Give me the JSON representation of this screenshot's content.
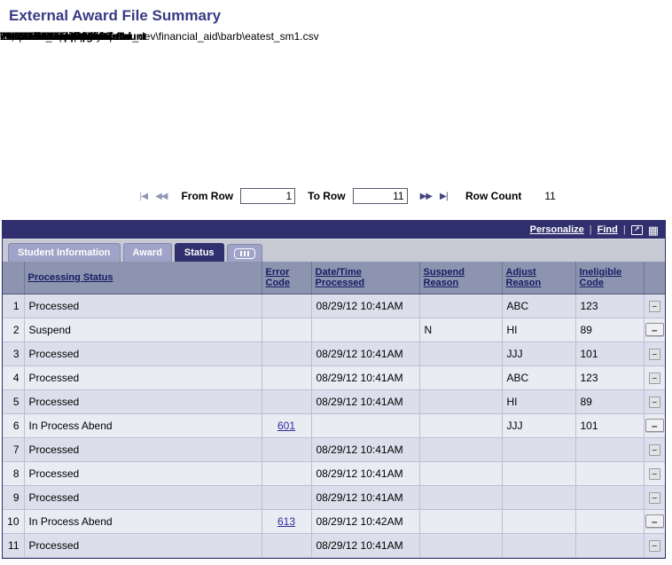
{
  "page": {
    "title": "External Award File Summary"
  },
  "header": {
    "institution_label": "Institution",
    "institution_value": "PSUNV",
    "institution_desc": "PeopleSoft University",
    "aid_year_label": "Aid Year",
    "aid_year_value": "2006-2007",
    "transaction_nbr_label": "Transaction Nbr",
    "transaction_nbr_value": "67",
    "date_label": "Date",
    "date_value": "08/29/2012",
    "process_instance_label": "Process Instance",
    "process_instance_value": "2434",
    "status_label": "Status",
    "status_value": "Processed",
    "file_mapping_id_label": "File Mapping ID",
    "file_mapping_id_value": "EXT FILE_EA DATA",
    "operator_id_label": "Operator Id",
    "operator_id_value": "PS",
    "file_name_label": "File Name",
    "file_name_value": "\\\\rtdc1006nap\\apps\\heqa\\he_dev\\financial_aid\\barb\\eatest_sm1.csv",
    "student_count_label": "Student Count",
    "student_count_value": "11",
    "award_total_label": "Award Total",
    "award_total_value": "11,055.00",
    "actual_count_label": "Actual Count",
    "actual_count_value": "11",
    "actual_total_label": "Actual Total",
    "actual_total_value": "11,055.00"
  },
  "nav": {
    "from_row_label": "From Row",
    "from_row_value": "1",
    "to_row_label": "To Row",
    "to_row_value": "11",
    "row_count_label": "Row Count",
    "row_count_value": "11"
  },
  "icons": {
    "first_rows": "|◀",
    "prev_rows": "◀◀",
    "next_rows": "▶▶",
    "last_rows": "▶|",
    "popout": "↗",
    "grid": "▦"
  },
  "grid": {
    "personalize_label": "Personalize",
    "find_label": "Find",
    "tabs": [
      {
        "label": "Student Information",
        "active": false
      },
      {
        "label": "Award",
        "active": false
      },
      {
        "label": "Status",
        "active": true
      }
    ],
    "columns": {
      "processing_status": "Processing Status",
      "error_code": "Error\nCode",
      "datetime_processed": "Date/Time\nProcessed",
      "suspend_reason": "Suspend\nReason",
      "adjust_reason": "Adjust\nReason",
      "ineligible_code": "Ineligible\nCode"
    },
    "rows": [
      {
        "num": "1",
        "status": "Processed",
        "error": "",
        "datetime": "08/29/12 10:41AM",
        "suspend": "",
        "adjust": "ABC",
        "ineligible": "123",
        "del": "small"
      },
      {
        "num": "2",
        "status": "Suspend",
        "error": "",
        "datetime": "",
        "suspend": "N",
        "adjust": "HI",
        "ineligible": "89",
        "del": "large"
      },
      {
        "num": "3",
        "status": "Processed",
        "error": "",
        "datetime": "08/29/12 10:41AM",
        "suspend": "",
        "adjust": "JJJ",
        "ineligible": "101",
        "del": "small"
      },
      {
        "num": "4",
        "status": "Processed",
        "error": "",
        "datetime": "08/29/12 10:41AM",
        "suspend": "",
        "adjust": "ABC",
        "ineligible": "123",
        "del": "small"
      },
      {
        "num": "5",
        "status": "Processed",
        "error": "",
        "datetime": "08/29/12 10:41AM",
        "suspend": "",
        "adjust": "HI",
        "ineligible": "89",
        "del": "small"
      },
      {
        "num": "6",
        "status": "In Process Abend",
        "error": "601",
        "datetime": "",
        "suspend": "",
        "adjust": "JJJ",
        "ineligible": "101",
        "del": "large"
      },
      {
        "num": "7",
        "status": "Processed",
        "error": "",
        "datetime": "08/29/12 10:41AM",
        "suspend": "",
        "adjust": "",
        "ineligible": "",
        "del": "small"
      },
      {
        "num": "8",
        "status": "Processed",
        "error": "",
        "datetime": "08/29/12 10:41AM",
        "suspend": "",
        "adjust": "",
        "ineligible": "",
        "del": "small"
      },
      {
        "num": "9",
        "status": "Processed",
        "error": "",
        "datetime": "08/29/12 10:41AM",
        "suspend": "",
        "adjust": "",
        "ineligible": "",
        "del": "small"
      },
      {
        "num": "10",
        "status": "In Process Abend",
        "error": "613",
        "datetime": "08/29/12 10:42AM",
        "suspend": "",
        "adjust": "",
        "ineligible": "",
        "del": "large"
      },
      {
        "num": "11",
        "status": "Processed",
        "error": "",
        "datetime": "08/29/12 10:41AM",
        "suspend": "",
        "adjust": "",
        "ineligible": "",
        "del": "small"
      }
    ]
  }
}
